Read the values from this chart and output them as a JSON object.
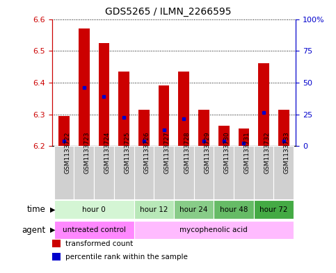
{
  "title": "GDS5265 / ILMN_2266595",
  "samples": [
    "GSM1133722",
    "GSM1133723",
    "GSM1133724",
    "GSM1133725",
    "GSM1133726",
    "GSM1133727",
    "GSM1133728",
    "GSM1133729",
    "GSM1133730",
    "GSM1133731",
    "GSM1133732",
    "GSM1133733"
  ],
  "bar_values": [
    6.295,
    6.57,
    6.525,
    6.435,
    6.315,
    6.39,
    6.435,
    6.315,
    6.265,
    6.255,
    6.46,
    6.315
  ],
  "bar_base": 6.2,
  "percentile_values": [
    6.215,
    6.385,
    6.355,
    6.29,
    6.215,
    6.25,
    6.285,
    6.215,
    6.215,
    6.21,
    6.305,
    6.215
  ],
  "ylim": [
    6.2,
    6.6
  ],
  "yticks_left": [
    6.2,
    6.3,
    6.4,
    6.5,
    6.6
  ],
  "yticks_right": [
    0,
    25,
    50,
    75,
    100
  ],
  "y2labels": [
    "0",
    "25",
    "50",
    "75",
    "100%"
  ],
  "time_groups": [
    {
      "label": "hour 0",
      "start": 0,
      "end": 4,
      "color": "#d4f5d4"
    },
    {
      "label": "hour 12",
      "start": 4,
      "end": 6,
      "color": "#b8e8b8"
    },
    {
      "label": "hour 24",
      "start": 6,
      "end": 8,
      "color": "#88cc88"
    },
    {
      "label": "hour 48",
      "start": 8,
      "end": 10,
      "color": "#66bb66"
    },
    {
      "label": "hour 72",
      "start": 10,
      "end": 12,
      "color": "#44aa44"
    }
  ],
  "agent_groups": [
    {
      "label": "untreated control",
      "start": 0,
      "end": 4,
      "color": "#ff88ff"
    },
    {
      "label": "mycophenolic acid",
      "start": 4,
      "end": 12,
      "color": "#ffbbff"
    }
  ],
  "bar_color": "#cc0000",
  "percentile_color": "#0000cc",
  "grid_color": "#000000",
  "title_color": "#000000",
  "left_axis_color": "#cc0000",
  "right_axis_color": "#0000cc",
  "legend_items": [
    {
      "label": "transformed count",
      "color": "#cc0000",
      "marker": "s"
    },
    {
      "label": "percentile rank within the sample",
      "color": "#0000cc",
      "marker": "s"
    }
  ],
  "bar_width": 0.55,
  "tick_label_fontsize": 6.5,
  "title_fontsize": 10
}
